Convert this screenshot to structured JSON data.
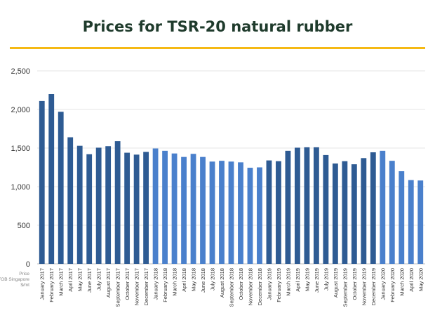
{
  "chart_data": {
    "type": "bar",
    "title": "Prices for TSR-20 natural rubber",
    "ylabel_lines": [
      "Price",
      "FOB Singapore",
      "$/mt"
    ],
    "ylim": [
      0,
      2500
    ],
    "yticks": [
      "0",
      "500",
      "1,000",
      "1,500",
      "2,000",
      "2,500"
    ],
    "grid": true,
    "categories": [
      "January 2017",
      "February 2017",
      "March 2017",
      "April 2017",
      "May 2017",
      "June 2017",
      "July 2017",
      "August 2017",
      "September 2017",
      "October 2017",
      "November 2017",
      "December 2017",
      "January 2018",
      "February 2018",
      "March 2018",
      "April 2018",
      "May 2018",
      "June 2018",
      "July 2018",
      "August 2018",
      "September 2018",
      "October 2018",
      "November 2018",
      "December 2018",
      "January 2019",
      "February 2019",
      "March 2019",
      "April 2019",
      "May 2019",
      "June 2019",
      "July 2019",
      "August 2019",
      "September 2019",
      "October 2019",
      "November 2019",
      "December 2019",
      "January 2020",
      "February 2020",
      "March 2020",
      "April 2020",
      "May 2020"
    ],
    "values": [
      2110,
      2200,
      1970,
      1640,
      1530,
      1420,
      1505,
      1525,
      1590,
      1440,
      1415,
      1450,
      1495,
      1465,
      1430,
      1385,
      1425,
      1385,
      1325,
      1335,
      1325,
      1315,
      1245,
      1250,
      1340,
      1330,
      1465,
      1505,
      1510,
      1510,
      1410,
      1300,
      1330,
      1290,
      1370,
      1445,
      1465,
      1335,
      1200,
      1085,
      1080
    ],
    "colors": {
      "2017": "#2e5b93",
      "2018": "#4a80cc",
      "2019": "#2e5b93",
      "2020": "#4a80cc"
    }
  }
}
